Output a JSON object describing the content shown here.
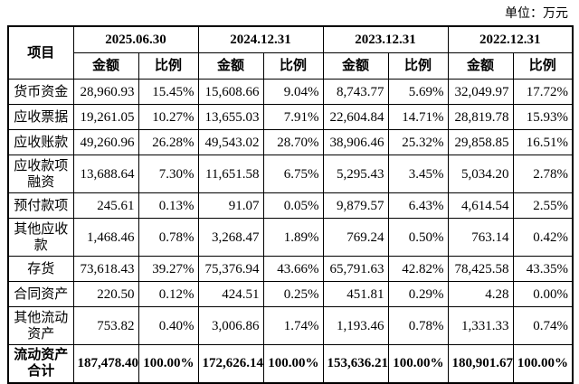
{
  "unit": "单位：万元",
  "table": {
    "item_header": "项目",
    "periods": [
      "2025.06.30",
      "2024.12.31",
      "2023.12.31",
      "2022.12.31"
    ],
    "subheaders": [
      "金额",
      "比例",
      "金额",
      "比例",
      "金额",
      "比例",
      "金额",
      "比例"
    ],
    "rows": [
      {
        "label": "货币资金",
        "cells": [
          "28,960.93",
          "15.45%",
          "15,608.66",
          "9.04%",
          "8,743.77",
          "5.69%",
          "32,049.97",
          "17.72%"
        ]
      },
      {
        "label": "应收票据",
        "cells": [
          "19,261.05",
          "10.27%",
          "13,655.03",
          "7.91%",
          "22,604.84",
          "14.71%",
          "28,819.78",
          "15.93%"
        ]
      },
      {
        "label": "应收账款",
        "cells": [
          "49,260.96",
          "26.28%",
          "49,543.02",
          "28.70%",
          "38,906.46",
          "25.32%",
          "29,858.85",
          "16.51%"
        ]
      },
      {
        "label": "应收款项融资",
        "cells": [
          "13,688.64",
          "7.30%",
          "11,651.58",
          "6.75%",
          "5,295.43",
          "3.45%",
          "5,034.20",
          "2.78%"
        ]
      },
      {
        "label": "预付款项",
        "cells": [
          "245.61",
          "0.13%",
          "91.07",
          "0.05%",
          "9,879.57",
          "6.43%",
          "4,614.54",
          "2.55%"
        ]
      },
      {
        "label": "其他应收款",
        "cells": [
          "1,468.46",
          "0.78%",
          "3,268.47",
          "1.89%",
          "769.24",
          "0.50%",
          "763.14",
          "0.42%"
        ]
      },
      {
        "label": "存货",
        "cells": [
          "73,618.43",
          "39.27%",
          "75,376.94",
          "43.66%",
          "65,791.63",
          "42.82%",
          "78,425.58",
          "43.35%"
        ]
      },
      {
        "label": "合同资产",
        "cells": [
          "220.50",
          "0.12%",
          "424.51",
          "0.25%",
          "451.81",
          "0.29%",
          "4.28",
          "0.00%"
        ]
      },
      {
        "label": "其他流动资产",
        "cells": [
          "753.82",
          "0.40%",
          "3,006.86",
          "1.74%",
          "1,193.46",
          "0.78%",
          "1,331.33",
          "0.74%"
        ]
      },
      {
        "label": "流动资产合计",
        "cells": [
          "187,478.40",
          "100.00%",
          "172,626.14",
          "100.00%",
          "153,636.21",
          "100.00%",
          "180,901.67",
          "100.00%"
        ]
      }
    ]
  }
}
